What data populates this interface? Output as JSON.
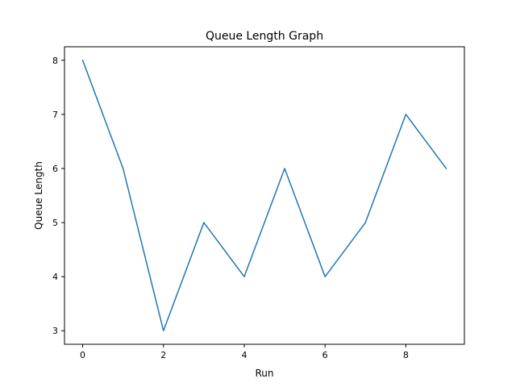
{
  "chart_data": {
    "type": "line",
    "title": "Queue Length Graph",
    "xlabel": "Run",
    "ylabel": "Queue Length",
    "x": [
      0,
      1,
      2,
      3,
      4,
      5,
      6,
      7,
      8,
      9
    ],
    "series": [
      {
        "values": [
          8,
          6,
          3,
          5,
          4,
          6,
          4,
          5,
          7,
          6
        ],
        "color": "#1f77b4"
      }
    ],
    "xlim": [
      -0.45,
      9.45
    ],
    "ylim": [
      2.75,
      8.25
    ],
    "xticks": [
      0,
      2,
      4,
      6,
      8
    ],
    "xtick_labels": [
      "0",
      "2",
      "4",
      "6",
      "8"
    ],
    "yticks": [
      3,
      4,
      5,
      6,
      7,
      8
    ],
    "ytick_labels": [
      "3",
      "4",
      "5",
      "6",
      "7",
      "8"
    ],
    "grid": false,
    "legend": "none"
  }
}
